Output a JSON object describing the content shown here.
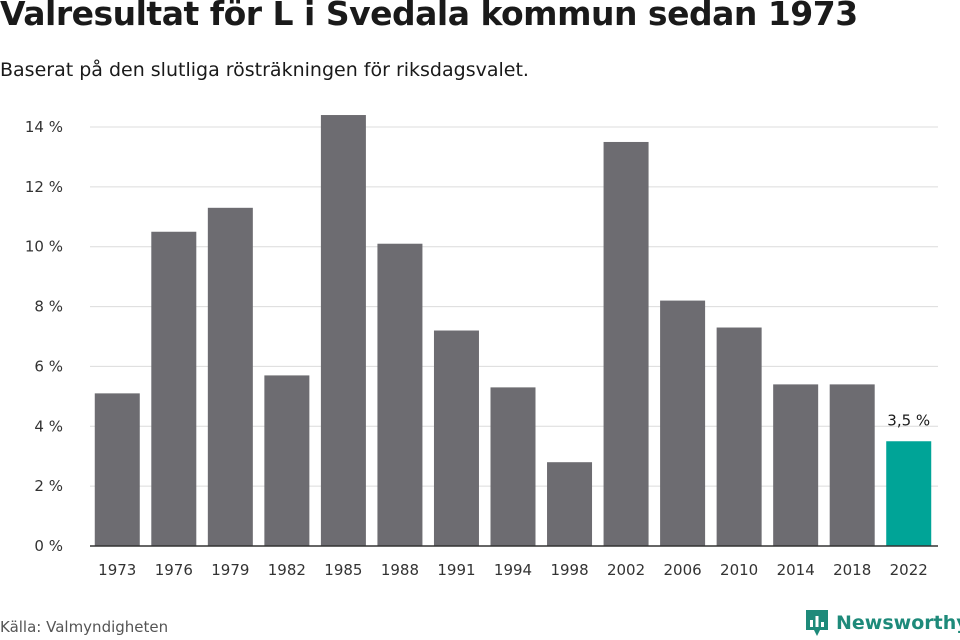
{
  "title": "Valresultat för L i Svedala kommun sedan 1973",
  "subtitle": "Baserat på den slutliga rösträkningen för riksdagsvalet.",
  "source": "Källa: Valmyndigheten",
  "brand": {
    "name": "Newsworthy",
    "color": "#1e8a7a",
    "icon": "newsworthy-logo-icon"
  },
  "colors": {
    "bar": "#6d6c71",
    "highlight": "#00a497",
    "grid": "#dcdcdc",
    "axis": "#333333"
  },
  "chart_data": {
    "type": "bar",
    "title": "Valresultat för L i Svedala kommun sedan 1973",
    "subtitle": "Baserat på den slutliga rösträkningen för riksdagsvalet.",
    "categories": [
      "1973",
      "1976",
      "1979",
      "1982",
      "1985",
      "1988",
      "1991",
      "1994",
      "1998",
      "2002",
      "2006",
      "2010",
      "2014",
      "2018",
      "2022"
    ],
    "values": [
      5.1,
      10.5,
      11.3,
      5.7,
      14.4,
      10.1,
      7.2,
      5.3,
      2.8,
      13.5,
      8.2,
      7.3,
      5.4,
      5.4,
      3.5
    ],
    "unit": "%",
    "ylim": [
      0,
      14
    ],
    "yticks": [
      0,
      2,
      4,
      6,
      8,
      10,
      12,
      14
    ],
    "ytick_labels": [
      "0 %",
      "2 %",
      "4 %",
      "6 %",
      "8 %",
      "10 %",
      "12 %",
      "14 %"
    ],
    "grid": true,
    "highlight_index": 14,
    "data_labels": [
      {
        "index": 14,
        "text": "3,5 %"
      }
    ]
  }
}
